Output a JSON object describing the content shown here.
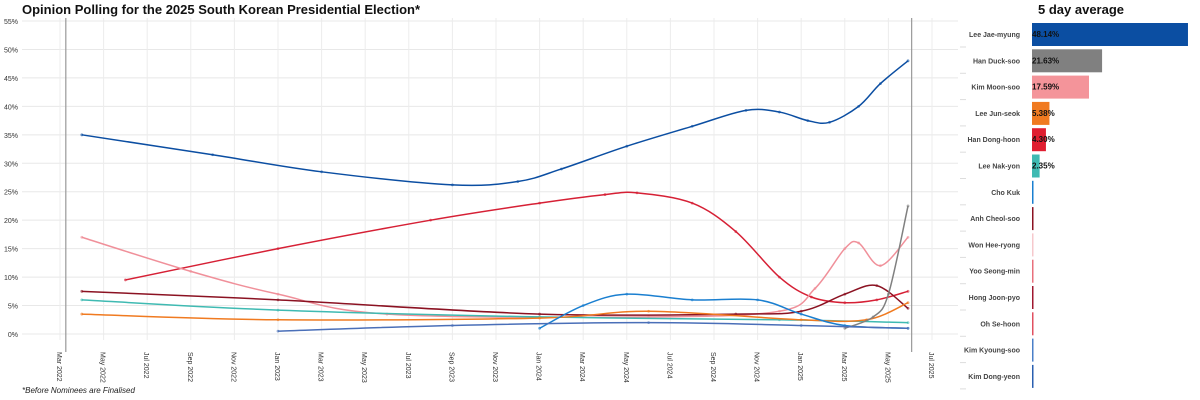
{
  "chart_data": [
    {
      "type": "line",
      "title": "Opinion Polling for the 2025 South Korean Presidential Election*",
      "footnote": "*Before Nominees are Finalised",
      "xlabel": "",
      "ylabel": "",
      "ylim": [
        0,
        55
      ],
      "y_ticks": [
        "0%",
        "5%",
        "10%",
        "15%",
        "20%",
        "25%",
        "30%",
        "35%",
        "40%",
        "45%",
        "50%",
        "55%"
      ],
      "x_ticks": [
        "Mar 2022",
        "May 2022",
        "Jul 2022",
        "Sep 2022",
        "Nov 2022",
        "Jan 2023",
        "Mar 2023",
        "May 2023",
        "Jul 2023",
        "Sep 2023",
        "Nov 2023",
        "Jan 2024",
        "Mar 2024",
        "May 2024",
        "Jul 2024",
        "Sep 2024",
        "Nov 2024",
        "Jan 2025",
        "Mar 2025",
        "May 2025",
        "Jul 2025"
      ],
      "grid": true,
      "reference_lines": [
        "2022-03-09",
        "2025-06-03"
      ],
      "series": [
        {
          "color": "#0b4ea2",
          "points": [
            [
              "2022-04-01",
              35
            ],
            [
              "2022-10-01",
              31.5
            ],
            [
              "2023-03-01",
              28.5
            ],
            [
              "2023-09-01",
              26.2
            ],
            [
              "2023-12-01",
              26.8
            ],
            [
              "2024-02-01",
              29
            ],
            [
              "2024-05-01",
              33
            ],
            [
              "2024-08-01",
              36.5
            ],
            [
              "2024-10-15",
              39.3
            ],
            [
              "2024-12-01",
              39
            ],
            [
              "2025-01-10",
              37.5
            ],
            [
              "2025-02-10",
              37.2
            ],
            [
              "2025-03-20",
              40
            ],
            [
              "2025-04-20",
              44
            ],
            [
              "2025-05-28",
              48
            ]
          ]
        },
        {
          "color": "#d62035",
          "points": [
            [
              "2022-06-01",
              9.5
            ],
            [
              "2023-01-01",
              15
            ],
            [
              "2023-08-01",
              20
            ],
            [
              "2024-01-01",
              23
            ],
            [
              "2024-04-01",
              24.5
            ],
            [
              "2024-05-15",
              24.8
            ],
            [
              "2024-08-01",
              23
            ],
            [
              "2024-10-01",
              18
            ],
            [
              "2024-12-01",
              10
            ],
            [
              "2025-01-15",
              6.5
            ],
            [
              "2025-03-01",
              5.5
            ],
            [
              "2025-04-15",
              6
            ],
            [
              "2025-05-28",
              7.5
            ]
          ]
        },
        {
          "color": "#f0909a",
          "points": [
            [
              "2022-04-01",
              17
            ],
            [
              "2022-09-01",
              11
            ],
            [
              "2023-01-01",
              7
            ],
            [
              "2023-06-01",
              3.5
            ],
            [
              "2024-06-01",
              3
            ],
            [
              "2024-12-01",
              4
            ],
            [
              "2025-01-20",
              8
            ],
            [
              "2025-03-01",
              15
            ],
            [
              "2025-03-20",
              16
            ],
            [
              "2025-04-20",
              12
            ],
            [
              "2025-05-28",
              17
            ]
          ]
        },
        {
          "color": "#8b1222",
          "points": [
            [
              "2022-04-01",
              7.5
            ],
            [
              "2023-01-01",
              6
            ],
            [
              "2024-01-01",
              3.5
            ],
            [
              "2024-10-01",
              3.5
            ],
            [
              "2025-01-01",
              4
            ],
            [
              "2025-03-01",
              7
            ],
            [
              "2025-04-15",
              8.5
            ],
            [
              "2025-05-28",
              4.5
            ]
          ]
        },
        {
          "color": "#3fbab2",
          "points": [
            [
              "2022-04-01",
              6
            ],
            [
              "2023-01-01",
              4.2
            ],
            [
              "2024-01-01",
              3
            ],
            [
              "2024-12-01",
              2.5
            ],
            [
              "2025-05-28",
              2
            ]
          ]
        },
        {
          "color": "#f07a20",
          "points": [
            [
              "2022-04-01",
              3.5
            ],
            [
              "2023-01-01",
              2.5
            ],
            [
              "2024-01-01",
              2.8
            ],
            [
              "2024-06-01",
              4
            ],
            [
              "2025-01-01",
              2.5
            ],
            [
              "2025-04-01",
              2.5
            ],
            [
              "2025-05-28",
              5.5
            ]
          ]
        },
        {
          "color": "#1a7fd0",
          "points": [
            [
              "2024-01-01",
              1
            ],
            [
              "2024-03-01",
              5
            ],
            [
              "2024-05-01",
              7
            ],
            [
              "2024-08-01",
              6
            ],
            [
              "2024-11-01",
              6
            ],
            [
              "2025-01-01",
              3.5
            ],
            [
              "2025-03-01",
              1.5
            ],
            [
              "2025-05-28",
              1
            ]
          ]
        },
        {
          "color": "#808080",
          "points": [
            [
              "2025-03-01",
              1
            ],
            [
              "2025-04-10",
              3
            ],
            [
              "2025-05-01",
              7
            ],
            [
              "2025-05-28",
              22.5
            ]
          ]
        },
        {
          "color": "#4a6fb8",
          "points": [
            [
              "2023-01-01",
              0.5
            ],
            [
              "2023-09-01",
              1.5
            ],
            [
              "2024-06-01",
              2
            ],
            [
              "2025-01-01",
              1.5
            ],
            [
              "2025-05-28",
              1
            ]
          ]
        }
      ]
    },
    {
      "type": "bar",
      "title": "5 day average",
      "categories": [
        "Lee Jae-myung",
        "Han Duck-soo",
        "Kim Moon-soo",
        "Lee Jun-seok",
        "Han Dong-hoon",
        "Lee Nak-yon",
        "Cho Kuk",
        "Anh Cheol-soo",
        "Won Hee-ryong",
        "Yoo Seong-min",
        "Hong Joon-pyo",
        "Oh Se-hoon",
        "Kim Kyoung-soo",
        "Kim Dong-yeon"
      ],
      "values": [
        48.14,
        21.63,
        17.59,
        5.38,
        4.3,
        2.35,
        0,
        0,
        0,
        0,
        0,
        0,
        0,
        0
      ],
      "labels": [
        "48.14%",
        "21.63%",
        "17.59%",
        "5.38%",
        "4.30%",
        "2.35%",
        "",
        "",
        "",
        "",
        "",
        "",
        "",
        ""
      ],
      "colors": [
        "#0b4ea2",
        "#808080",
        "#f4949a",
        "#f07a20",
        "#e01e30",
        "#3fbab2",
        "#1a7fd0",
        "#8b1222",
        "#f6c8cc",
        "#e8707c",
        "#a01830",
        "#e05060",
        "#4a7fc8",
        "#2a5fb0"
      ]
    }
  ]
}
